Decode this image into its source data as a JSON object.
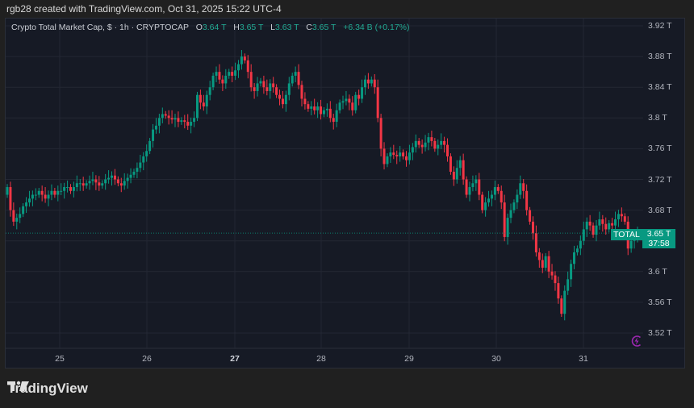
{
  "credit": "rgb28 created with TradingView.com, Oct 31, 2025 15:22 UTC-4",
  "legend": {
    "symbol": "Crypto Total Market Cap, $ · 1h · CRYPTOCAP",
    "o_label": "O",
    "o_value": "3.64 T",
    "h_label": "H",
    "h_value": "3.65 T",
    "l_label": "L",
    "l_value": "3.63 T",
    "c_label": "C",
    "c_value": "3.65 T",
    "change": "+6.34 B (+0.17%)"
  },
  "price_tag": {
    "name": "TOTAL",
    "price": "3.65 T",
    "countdown": "37:58"
  },
  "brand": "TradingView",
  "colors": {
    "up": "#089981",
    "down": "#f23645",
    "background": "#161a25",
    "grid": "#232733",
    "page": "#202020",
    "bolt": "#9c27b0"
  },
  "chart_data": {
    "type": "candlestick",
    "title": "Crypto Total Market Cap, $ · 1h · CRYPTOCAP",
    "xlabel": "",
    "ylabel": "",
    "ylim": [
      3.5,
      3.93
    ],
    "y_ticks": [
      "3.92 T",
      "3.88 T",
      "3.84 T",
      "3.8 T",
      "3.76 T",
      "3.72 T",
      "3.68 T",
      "3.6 T",
      "3.56 T",
      "3.52 T"
    ],
    "x_ticks": [
      "25",
      "26",
      "27",
      "28",
      "29",
      "30",
      "31"
    ],
    "grid": true,
    "last_price": 3.65,
    "closes": [
      3.71,
      3.68,
      3.665,
      3.67,
      3.675,
      3.685,
      3.69,
      3.695,
      3.7,
      3.7,
      3.705,
      3.7,
      3.695,
      3.7,
      3.705,
      3.7,
      3.705,
      3.705,
      3.71,
      3.71,
      3.705,
      3.71,
      3.715,
      3.715,
      3.712,
      3.715,
      3.718,
      3.72,
      3.716,
      3.712,
      3.715,
      3.72,
      3.722,
      3.725,
      3.72,
      3.715,
      3.712,
      3.718,
      3.722,
      3.726,
      3.73,
      3.735,
      3.742,
      3.75,
      3.757,
      3.77,
      3.785,
      3.79,
      3.8,
      3.805,
      3.803,
      3.8,
      3.798,
      3.8,
      3.795,
      3.797,
      3.795,
      3.79,
      3.795,
      3.8,
      3.83,
      3.82,
      3.815,
      3.83,
      3.84,
      3.855,
      3.86,
      3.85,
      3.845,
      3.855,
      3.86,
      3.855,
      3.862,
      3.87,
      3.88,
      3.875,
      3.86,
      3.84,
      3.835,
      3.845,
      3.848,
      3.84,
      3.835,
      3.845,
      3.84,
      3.83,
      3.825,
      3.818,
      3.83,
      3.845,
      3.855,
      3.86,
      3.843,
      3.825,
      3.818,
      3.812,
      3.815,
      3.81,
      3.815,
      3.805,
      3.81,
      3.812,
      3.8,
      3.795,
      3.81,
      3.82,
      3.822,
      3.825,
      3.82,
      3.81,
      3.83,
      3.825,
      3.84,
      3.85,
      3.845,
      3.85,
      3.84,
      3.8,
      3.76,
      3.74,
      3.75,
      3.755,
      3.752,
      3.75,
      3.755,
      3.75,
      3.745,
      3.755,
      3.762,
      3.77,
      3.765,
      3.762,
      3.768,
      3.775,
      3.77,
      3.76,
      3.765,
      3.77,
      3.765,
      3.75,
      3.73,
      3.72,
      3.735,
      3.745,
      3.72,
      3.7,
      3.71,
      3.715,
      3.72,
      3.7,
      3.68,
      3.69,
      3.695,
      3.7,
      3.71,
      3.705,
      3.69,
      3.645,
      3.67,
      3.68,
      3.69,
      3.7,
      3.715,
      3.705,
      3.68,
      3.665,
      3.65,
      3.625,
      3.615,
      3.605,
      3.62,
      3.6,
      3.595,
      3.585,
      3.565,
      3.545,
      3.575,
      3.59,
      3.61,
      3.625,
      3.63,
      3.64,
      3.655,
      3.665,
      3.66,
      3.648,
      3.66,
      3.668,
      3.662,
      3.655,
      3.663,
      3.66,
      3.668,
      3.675,
      3.672,
      3.665,
      3.63,
      3.64,
      3.645,
      3.65
    ]
  }
}
